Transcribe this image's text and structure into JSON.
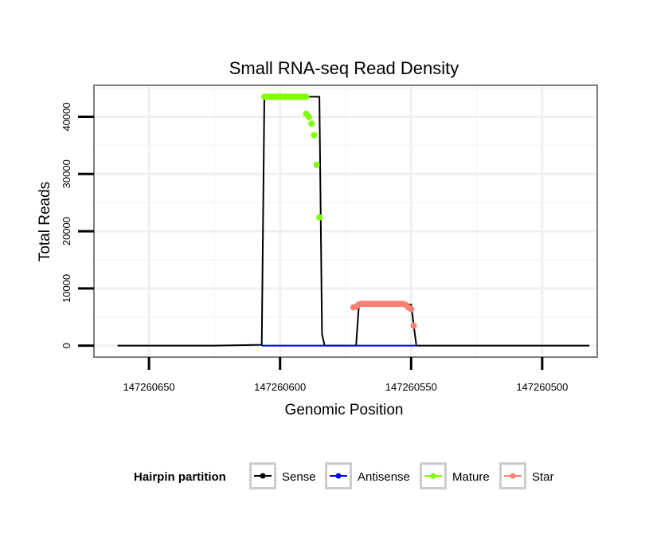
{
  "chart_data": {
    "type": "line",
    "title": "Small RNA-seq Read Density",
    "xlabel": "Genomic Position",
    "ylabel": "Total Reads",
    "x_reversed": true,
    "xlim": [
      147260671,
      147260479
    ],
    "ylim": [
      -2000,
      45500
    ],
    "xticks": [
      147260650,
      147260600,
      147260550,
      147260500
    ],
    "xtick_labels": [
      "147260650",
      "147260600",
      "147260550",
      "147260500"
    ],
    "yticks": [
      0,
      10000,
      20000,
      30000,
      40000
    ],
    "ytick_labels": [
      "0",
      "10000",
      "20000",
      "30000",
      "40000"
    ],
    "grid": true,
    "legend_title": "Hairpin partition",
    "legend_position": "bottom",
    "series": [
      {
        "name": "Sense",
        "color": "#000000",
        "kind": "line",
        "x": [
          147260662,
          147260625,
          147260607,
          147260606,
          147260605,
          147260585,
          147260584,
          147260583,
          147260571,
          147260570,
          147260569,
          147260550,
          147260549,
          147260548,
          147260543
        ],
        "y": [
          0,
          0,
          150,
          43500,
          43500,
          43500,
          2000,
          0,
          0,
          6700,
          7200,
          7200,
          3500,
          0,
          0
        ]
      },
      {
        "name": "Sense",
        "color": "#000000",
        "kind": "line",
        "x": [
          147260543,
          147260500,
          147260482
        ],
        "y": [
          0,
          0,
          0
        ]
      },
      {
        "name": "Antisense",
        "color": "#0000ff",
        "kind": "line",
        "x": [
          147260607,
          147260548
        ],
        "y": [
          0,
          0
        ]
      },
      {
        "name": "Mature",
        "color": "#7fff00",
        "kind": "points",
        "x": [
          147260606,
          147260605,
          147260604,
          147260603,
          147260602,
          147260601,
          147260600,
          147260599,
          147260598,
          147260597,
          147260596,
          147260595,
          147260594,
          147260593,
          147260592,
          147260591,
          147260590,
          147260590,
          147260589,
          147260588,
          147260587,
          147260586,
          147260585
        ],
        "y": [
          43500,
          43500,
          43500,
          43500,
          43500,
          43500,
          43500,
          43500,
          43500,
          43500,
          43500,
          43500,
          43500,
          43500,
          43500,
          43500,
          43500,
          40500,
          40000,
          38800,
          36800,
          31600,
          22400
        ]
      },
      {
        "name": "Star",
        "color": "#fa8072",
        "kind": "points",
        "x": [
          147260572,
          147260571,
          147260570,
          147260569,
          147260568,
          147260567,
          147260566,
          147260565,
          147260564,
          147260563,
          147260562,
          147260561,
          147260560,
          147260559,
          147260558,
          147260557,
          147260556,
          147260555,
          147260554,
          147260553,
          147260552,
          147260551,
          147260550,
          147260549
        ],
        "y": [
          6700,
          6800,
          7200,
          7300,
          7300,
          7300,
          7300,
          7300,
          7300,
          7300,
          7300,
          7300,
          7300,
          7300,
          7300,
          7300,
          7300,
          7300,
          7300,
          7300,
          7100,
          6700,
          6400,
          3500
        ]
      }
    ],
    "legend_entries": [
      {
        "label": "Sense",
        "color": "#000000"
      },
      {
        "label": "Antisense",
        "color": "#0000ff"
      },
      {
        "label": "Mature",
        "color": "#7fff00"
      },
      {
        "label": "Star",
        "color": "#fa8072"
      }
    ]
  }
}
